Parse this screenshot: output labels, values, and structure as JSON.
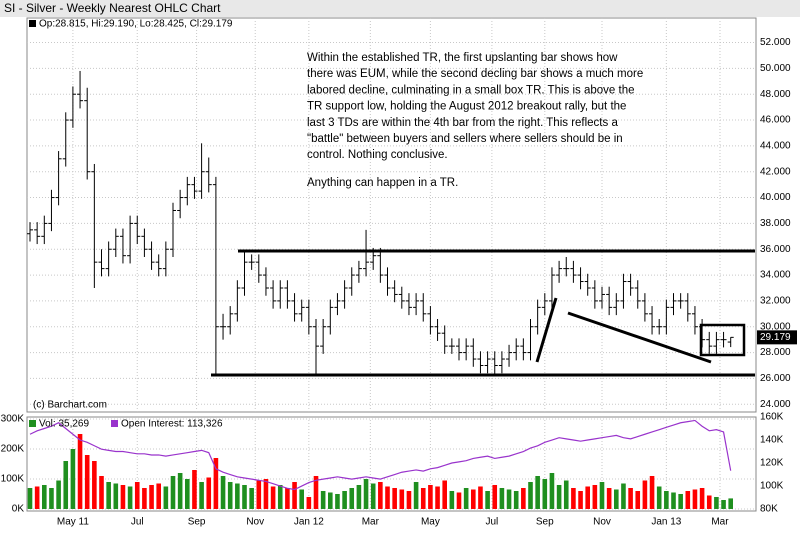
{
  "chart_data": [
    {
      "type": "ohlc",
      "title": "SI - Silver - Weekly Nearest OHLC Chart",
      "header": "Op:28.815, Hi:29.190, Lo:28.425, Cl:29.179",
      "copyright": "(c) Barchart.com",
      "annotation": [
        "Within the established TR, the first upslanting bar shows how",
        "there was EUM, while the second decling bar shows a much more",
        "labored decline, culminating in a small box TR.  This is above the",
        "TR support low, holding the August 2012 breakout rally, but the",
        "last 3 TDs are within the 4th bar from the right.  This reflects a",
        "\"battle\" between buyers and sellers where sellers should be in",
        "control.    Nothing conclusive."
      ],
      "annotation2": "Anything can happen in a TR.",
      "color": "#000000",
      "open": [
        37.2,
        37.5,
        37,
        38,
        40,
        43,
        46,
        48,
        47.5,
        42,
        35,
        34.5,
        36,
        37,
        35.5,
        38,
        37,
        36,
        35,
        34.5,
        36,
        39,
        40,
        41,
        40.5,
        42,
        41,
        30,
        30,
        31,
        33,
        35,
        35,
        34,
        33,
        32,
        33,
        32,
        31,
        31.5,
        30,
        28.5,
        30,
        31.5,
        32,
        33,
        34,
        34.5,
        35,
        35.5,
        34,
        33,
        32.5,
        32,
        31.5,
        32,
        31,
        30,
        29.5,
        28.5,
        28.5,
        28,
        28.5,
        27.5,
        27,
        27.5,
        27,
        27.5,
        28,
        28.5,
        28,
        30,
        31.5,
        32,
        34,
        34.5,
        34.5,
        34,
        33.5,
        33,
        32,
        32.5,
        31.5,
        32,
        33.5,
        33,
        32,
        31,
        30,
        30,
        31.5,
        32,
        32,
        31,
        30,
        29,
        28.5,
        29,
        28.815
      ],
      "high": [
        38.1,
        38.1,
        38.6,
        40.6,
        43.6,
        46.6,
        48.6,
        49.8,
        48.5,
        42.6,
        36,
        36.6,
        37.6,
        37.6,
        38.6,
        38.6,
        37.6,
        36.6,
        35.6,
        36.6,
        39.6,
        40.6,
        41.6,
        41.6,
        44.2,
        43.1,
        41.6,
        31,
        31.6,
        33.6,
        35.9,
        35.6,
        35.6,
        34.6,
        33.6,
        33.6,
        33.6,
        32.6,
        32.1,
        32.1,
        30.6,
        30.6,
        32.1,
        32.6,
        33.6,
        34.6,
        35.1,
        37.5,
        36.1,
        36.1,
        34.6,
        33.6,
        33.1,
        32.6,
        32.6,
        32.6,
        31.6,
        30.6,
        30.1,
        29.1,
        29.1,
        29.1,
        29.1,
        28.1,
        28.1,
        28.1,
        28.1,
        28.6,
        29.1,
        29.1,
        30.6,
        32.1,
        32.6,
        34.6,
        35.1,
        35.4,
        35.1,
        34.6,
        34.1,
        33.6,
        33.1,
        33.1,
        32.6,
        34.1,
        34.1,
        33.6,
        32.6,
        31.6,
        30.6,
        32.1,
        32.6,
        32.6,
        32.6,
        31.6,
        30.6,
        29.6,
        29.6,
        29.6,
        29.19
      ],
      "low": [
        36.6,
        36.4,
        36.4,
        37.4,
        39.4,
        42.4,
        45.4,
        46.9,
        41.4,
        33,
        33.9,
        33.9,
        35.4,
        34.9,
        34.9,
        36.4,
        35.4,
        34.4,
        33.9,
        33.9,
        35.4,
        38.4,
        39.4,
        39.9,
        39.9,
        40.4,
        26.3,
        29,
        29.4,
        30.4,
        32.4,
        34.4,
        33.4,
        32.4,
        31.4,
        31.4,
        31.4,
        30.4,
        30.4,
        29.4,
        26.3,
        27.9,
        29.4,
        30.9,
        31.4,
        32.4,
        33.4,
        33.9,
        34.4,
        33.4,
        32.4,
        31.9,
        31.4,
        30.9,
        30.9,
        30.4,
        29.4,
        28.9,
        27.9,
        27.9,
        27.4,
        27.4,
        26.9,
        26.4,
        26.4,
        26.2,
        26.4,
        26.9,
        27.4,
        27.4,
        27.4,
        29.4,
        30.9,
        31.4,
        33.4,
        33.9,
        33.4,
        32.9,
        32.4,
        31.4,
        31.4,
        30.9,
        30.9,
        31.4,
        32.4,
        31.4,
        30.4,
        29.4,
        29.4,
        29.4,
        30.9,
        31.4,
        30.4,
        29.4,
        28.4,
        27.9,
        27.9,
        28.4,
        28.425
      ],
      "close": [
        37.5,
        37,
        38,
        40,
        43,
        46,
        48,
        47.5,
        42,
        35,
        34.5,
        36,
        37,
        35.5,
        38,
        37,
        36,
        35,
        34.5,
        36,
        39,
        40,
        41,
        40.5,
        42,
        41,
        30,
        30,
        31,
        33,
        35,
        35,
        34,
        33,
        32,
        33,
        32,
        31,
        31.5,
        30,
        28.5,
        30,
        31.5,
        32,
        33,
        34,
        34.5,
        35,
        35.5,
        34,
        33,
        32.5,
        32,
        31.5,
        32,
        31,
        30,
        29.5,
        28.5,
        28.5,
        28,
        28.5,
        27.5,
        27,
        27.5,
        27,
        27.5,
        28,
        28.5,
        28,
        30,
        31.5,
        32,
        34,
        34.5,
        34.5,
        34,
        33.5,
        33,
        32,
        32.5,
        31.5,
        32,
        33.5,
        33,
        32,
        31,
        30,
        30,
        31.5,
        32,
        32,
        31,
        30,
        29,
        28.5,
        29,
        29,
        29.179
      ],
      "last_close_label": "29.179",
      "xticks": [
        {
          "value": 6,
          "label": "May 11"
        },
        {
          "value": 15,
          "label": "Jul"
        },
        {
          "value": 23.3,
          "label": "Sep"
        },
        {
          "value": 31.5,
          "label": "Nov"
        },
        {
          "value": 39,
          "label": "Jan 12"
        },
        {
          "value": 47.6,
          "label": "Mar"
        },
        {
          "value": 56,
          "label": "May"
        },
        {
          "value": 64.6,
          "label": "Jul"
        },
        {
          "value": 72,
          "label": "Sep"
        },
        {
          "value": 80,
          "label": "Nov"
        },
        {
          "value": 89,
          "label": "Jan 13"
        },
        {
          "value": 96.5,
          "label": "Mar"
        }
      ],
      "ylim": [
        23.4,
        53.9
      ],
      "yticks": [
        {
          "value": 24,
          "label": "24.000"
        },
        {
          "value": 26,
          "label": "26.000"
        },
        {
          "value": 28,
          "label": "28.000"
        },
        {
          "value": 30,
          "label": "30.000"
        },
        {
          "value": 32,
          "label": "32.000"
        },
        {
          "value": 34,
          "label": "34.000"
        },
        {
          "value": 36,
          "label": "36.000"
        },
        {
          "value": 38,
          "label": "38.000"
        },
        {
          "value": 40,
          "label": "40.000"
        },
        {
          "value": 42,
          "label": "42.000"
        },
        {
          "value": 44,
          "label": "44.000"
        },
        {
          "value": 46,
          "label": "46.000"
        },
        {
          "value": 48,
          "label": "48.000"
        },
        {
          "value": 50,
          "label": "50.000"
        },
        {
          "value": 52,
          "label": "52.000"
        }
      ],
      "grid": true
    },
    {
      "type": "bar",
      "series": [
        {
          "name": "Vol: 35,269",
          "up_color": "#1f8f1f",
          "down_color": "#ff0000",
          "values": [
            70000,
            75000,
            80000,
            70000,
            95000,
            160000,
            200000,
            250000,
            180000,
            160000,
            110000,
            90000,
            85000,
            80000,
            75000,
            90000,
            70000,
            80000,
            85000,
            75000,
            110000,
            120000,
            100000,
            130000,
            90000,
            105000,
            170000,
            110000,
            90000,
            85000,
            80000,
            70000,
            95000,
            100000,
            75000,
            80000,
            70000,
            90000,
            65000,
            40000,
            110000,
            60000,
            55000,
            50000,
            60000,
            70000,
            80000,
            100000,
            85000,
            90000,
            75000,
            70000,
            65000,
            60000,
            90000,
            70000,
            80000,
            75000,
            95000,
            60000,
            55000,
            70000,
            65000,
            75000,
            60000,
            80000,
            70000,
            65000,
            60000,
            70000,
            90000,
            110000,
            100000,
            120000,
            80000,
            95000,
            70000,
            60000,
            75000,
            80000,
            90000,
            70000,
            65000,
            85000,
            70000,
            60000,
            95000,
            110000,
            75000,
            60000,
            55000,
            50000,
            60000,
            65000,
            70000,
            45000,
            40000,
            30000,
            35269
          ]
        },
        {
          "name": "Open Interest: 113,326",
          "color": "#9933cc",
          "axis": "y2",
          "values": [
            145000,
            148000,
            150000,
            152000,
            155000,
            150000,
            145000,
            140000,
            138000,
            135000,
            132000,
            131000,
            130000,
            130000,
            129000,
            128000,
            128000,
            127000,
            127000,
            126000,
            127000,
            128000,
            129000,
            130000,
            131000,
            129000,
            115000,
            112000,
            110000,
            108000,
            107000,
            106000,
            105000,
            104000,
            102000,
            100000,
            98000,
            97000,
            100000,
            103000,
            105000,
            106000,
            107000,
            108000,
            107000,
            106000,
            107000,
            108000,
            107000,
            106000,
            108000,
            110000,
            112000,
            113000,
            114000,
            113000,
            115000,
            116000,
            118000,
            120000,
            121000,
            122000,
            124000,
            125000,
            126000,
            124000,
            125000,
            126000,
            128000,
            130000,
            133000,
            135000,
            138000,
            140000,
            142000,
            141000,
            140000,
            139000,
            140000,
            141000,
            142000,
            143000,
            144000,
            142000,
            141000,
            143000,
            145000,
            147000,
            149000,
            151000,
            153000,
            155000,
            156000,
            157000,
            152000,
            148000,
            149000,
            147000,
            113326
          ]
        }
      ],
      "ylim": [
        -6700,
        306700
      ],
      "yticks": [
        {
          "value": 0,
          "label": "0K"
        },
        {
          "value": 100000,
          "label": "100K"
        },
        {
          "value": 200000,
          "label": "200K"
        },
        {
          "value": 300000,
          "label": "300K"
        }
      ],
      "y2lim": [
        78300,
        160000
      ],
      "y2ticks": [
        {
          "value": 80000,
          "label": "80K"
        },
        {
          "value": 100000,
          "label": "100K"
        },
        {
          "value": 120000,
          "label": "120K"
        },
        {
          "value": 140000,
          "label": "140K"
        },
        {
          "value": 160000,
          "label": "160K"
        }
      ],
      "grid": true
    }
  ]
}
